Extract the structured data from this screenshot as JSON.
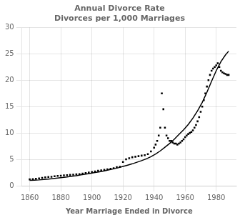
{
  "chart_data": {
    "type": "line",
    "title": "Annual Divorce Rate\nDivorces per 1,000 Marriages",
    "xlabel": "Year Marriage Ended in Divorce",
    "xlim": [
      1855,
      1993
    ],
    "ylim": [
      0,
      30
    ],
    "xticks": [
      1860,
      1880,
      1900,
      1920,
      1940,
      1960,
      1980
    ],
    "yticks": [
      0,
      5,
      10,
      15,
      20,
      25,
      30
    ],
    "grid": true,
    "series": [
      {
        "x": [
          1860,
          1863,
          1866,
          1869,
          1872,
          1875,
          1878,
          1881,
          1884,
          1887,
          1890,
          1893,
          1896,
          1899,
          1902,
          1905,
          1908,
          1911,
          1914,
          1917,
          1920,
          1923,
          1926,
          1929,
          1932,
          1935,
          1938,
          1941,
          1944,
          1947,
          1950,
          1953,
          1956,
          1959,
          1962,
          1965,
          1968,
          1971,
          1974,
          1977,
          1980,
          1983,
          1986,
          1988
        ],
        "values": [
          1.0,
          1.05,
          1.1,
          1.18,
          1.26,
          1.35,
          1.45,
          1.55,
          1.65,
          1.78,
          1.9,
          2.05,
          2.2,
          2.35,
          2.5,
          2.65,
          2.82,
          3.0,
          3.2,
          3.4,
          3.65,
          3.9,
          4.15,
          4.45,
          4.75,
          5.1,
          5.5,
          6.0,
          6.6,
          7.3,
          8.0,
          8.8,
          9.7,
          10.6,
          11.6,
          12.8,
          14.2,
          15.8,
          17.7,
          19.8,
          21.8,
          23.5,
          24.8,
          25.5
        ],
        "color": "#000000",
        "line_style": "solid",
        "marker": "none"
      },
      {
        "x": [
          1860,
          1862,
          1864,
          1866,
          1868,
          1870,
          1872,
          1874,
          1876,
          1878,
          1880,
          1882,
          1884,
          1886,
          1888,
          1890,
          1892,
          1894,
          1896,
          1898,
          1900,
          1902,
          1904,
          1906,
          1908,
          1910,
          1912,
          1914,
          1916,
          1918,
          1920,
          1922,
          1924,
          1926,
          1928,
          1930,
          1932,
          1934,
          1936,
          1938,
          1940,
          1941,
          1942,
          1943,
          1944,
          1945,
          1946,
          1947,
          1948,
          1949,
          1950,
          1951,
          1952,
          1953,
          1954,
          1955,
          1956,
          1957,
          1958,
          1959,
          1960,
          1961,
          1962,
          1963,
          1964,
          1965,
          1966,
          1967,
          1968,
          1969,
          1970,
          1971,
          1972,
          1973,
          1974,
          1975,
          1976,
          1977,
          1978,
          1979,
          1980,
          1981,
          1982,
          1983,
          1984,
          1985,
          1986,
          1987,
          1988
        ],
        "values": [
          1.2,
          1.25,
          1.3,
          1.4,
          1.5,
          1.6,
          1.65,
          1.7,
          1.8,
          1.85,
          1.9,
          1.95,
          2.0,
          2.05,
          2.1,
          2.15,
          2.2,
          2.3,
          2.4,
          2.5,
          2.6,
          2.7,
          2.85,
          2.9,
          3.0,
          3.1,
          3.2,
          3.3,
          3.5,
          3.6,
          4.5,
          5.0,
          5.2,
          5.4,
          5.5,
          5.6,
          5.7,
          5.8,
          6.0,
          6.5,
          7.2,
          7.8,
          8.5,
          9.5,
          11.0,
          17.5,
          14.5,
          11.0,
          9.5,
          9.0,
          8.5,
          8.5,
          8.2,
          8.0,
          8.0,
          7.8,
          8.0,
          8.2,
          8.5,
          8.8,
          9.2,
          9.5,
          9.8,
          10.0,
          10.2,
          10.5,
          11.0,
          11.5,
          12.2,
          13.0,
          14.0,
          15.0,
          16.2,
          17.5,
          18.8,
          20.0,
          21.0,
          21.8,
          22.2,
          22.5,
          22.8,
          23.2,
          22.5,
          21.8,
          21.5,
          21.3,
          21.2,
          21.0,
          21.0
        ],
        "color": "#000000",
        "line_style": "none",
        "marker": "square"
      }
    ]
  }
}
